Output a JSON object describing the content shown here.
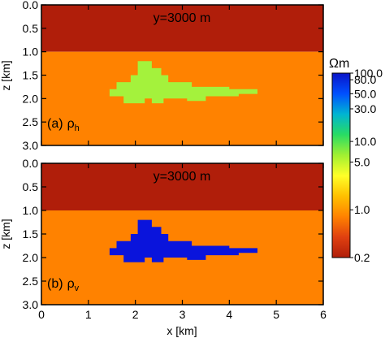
{
  "chart_data": [
    {
      "type": "heatmap",
      "annotation": "y=3000 m",
      "panel_label": "(a)",
      "symbol": "ρ",
      "subscript": "h",
      "xlim": [
        0,
        6
      ],
      "ylim": [
        3.0,
        0.0
      ],
      "ylabel": "z [km]",
      "yticks": [
        "0.0",
        "0.5",
        "1.0",
        "1.5",
        "2.0",
        "2.5",
        "3.0"
      ],
      "regions": [
        {
          "name": "upper layer",
          "z_range": [
            0.0,
            1.0
          ],
          "x_range": [
            0,
            6
          ],
          "resistivity": 0.2,
          "color": "#b01e0a"
        },
        {
          "name": "background",
          "z_range": [
            1.0,
            3.0
          ],
          "x_range": [
            0,
            6
          ],
          "resistivity": 3.0,
          "color": "#ff8200"
        },
        {
          "name": "anomaly",
          "resistivity": 10.0,
          "color": "#a4f23c",
          "polygon": [
            [
              2.05,
              1.2
            ],
            [
              2.35,
              1.2
            ],
            [
              2.35,
              1.35
            ],
            [
              2.55,
              1.35
            ],
            [
              2.55,
              1.5
            ],
            [
              2.7,
              1.5
            ],
            [
              2.7,
              1.65
            ],
            [
              3.2,
              1.65
            ],
            [
              3.2,
              1.75
            ],
            [
              4.0,
              1.75
            ],
            [
              4.0,
              1.8
            ],
            [
              4.6,
              1.8
            ],
            [
              4.6,
              1.9
            ],
            [
              4.2,
              1.9
            ],
            [
              4.2,
              1.95
            ],
            [
              3.5,
              1.95
            ],
            [
              3.5,
              2.05
            ],
            [
              3.1,
              2.05
            ],
            [
              3.1,
              2.0
            ],
            [
              2.6,
              2.0
            ],
            [
              2.6,
              2.1
            ],
            [
              2.35,
              2.1
            ],
            [
              2.35,
              2.0
            ],
            [
              2.2,
              2.0
            ],
            [
              2.2,
              2.1
            ],
            [
              1.75,
              2.1
            ],
            [
              1.75,
              1.95
            ],
            [
              1.45,
              1.95
            ],
            [
              1.45,
              1.8
            ],
            [
              1.6,
              1.8
            ],
            [
              1.6,
              1.65
            ],
            [
              1.9,
              1.65
            ],
            [
              1.9,
              1.5
            ],
            [
              2.05,
              1.5
            ]
          ]
        }
      ]
    },
    {
      "type": "heatmap",
      "annotation": "y=3000 m",
      "panel_label": "(b)",
      "symbol": "ρ",
      "subscript": "v",
      "xlim": [
        0,
        6
      ],
      "ylim": [
        3.0,
        0.0
      ],
      "xlabel": "x [km]",
      "ylabel": "z [km]",
      "xticks": [
        "0",
        "1",
        "2",
        "3",
        "4",
        "5",
        "6"
      ],
      "yticks": [
        "0.0",
        "0.5",
        "1.0",
        "1.5",
        "2.0",
        "2.5",
        "3.0"
      ],
      "regions": [
        {
          "name": "upper layer",
          "z_range": [
            0.0,
            1.0
          ],
          "x_range": [
            0,
            6
          ],
          "resistivity": 0.2,
          "color": "#b01e0a"
        },
        {
          "name": "background",
          "z_range": [
            1.0,
            3.0
          ],
          "x_range": [
            0,
            6
          ],
          "resistivity": 3.0,
          "color": "#ff8200"
        },
        {
          "name": "anomaly",
          "resistivity": 100.0,
          "color": "#0a14dc",
          "polygon": [
            [
              2.05,
              1.2
            ],
            [
              2.35,
              1.2
            ],
            [
              2.35,
              1.35
            ],
            [
              2.55,
              1.35
            ],
            [
              2.55,
              1.5
            ],
            [
              2.7,
              1.5
            ],
            [
              2.7,
              1.65
            ],
            [
              3.2,
              1.65
            ],
            [
              3.2,
              1.75
            ],
            [
              4.0,
              1.75
            ],
            [
              4.0,
              1.8
            ],
            [
              4.6,
              1.8
            ],
            [
              4.6,
              1.9
            ],
            [
              4.2,
              1.9
            ],
            [
              4.2,
              1.95
            ],
            [
              3.5,
              1.95
            ],
            [
              3.5,
              2.05
            ],
            [
              3.1,
              2.05
            ],
            [
              3.1,
              2.0
            ],
            [
              2.6,
              2.0
            ],
            [
              2.6,
              2.1
            ],
            [
              2.35,
              2.1
            ],
            [
              2.35,
              2.0
            ],
            [
              2.2,
              2.0
            ],
            [
              2.2,
              2.1
            ],
            [
              1.75,
              2.1
            ],
            [
              1.75,
              1.95
            ],
            [
              1.45,
              1.95
            ],
            [
              1.45,
              1.8
            ],
            [
              1.6,
              1.8
            ],
            [
              1.6,
              1.65
            ],
            [
              1.9,
              1.65
            ],
            [
              1.9,
              1.5
            ],
            [
              2.05,
              1.5
            ]
          ]
        }
      ]
    }
  ],
  "colorbar": {
    "unit": "Ωm",
    "scale": "log",
    "range": [
      0.2,
      100.0
    ],
    "ticks": [
      "100.0",
      "80.0",
      "50.0",
      "30.0",
      "10.0",
      "5.0",
      "1.0",
      "0.2"
    ],
    "colors": [
      "#b01e0a",
      "#e04010",
      "#ff8200",
      "#ffc000",
      "#ffff28",
      "#a0f032",
      "#28dc64",
      "#00b4d2",
      "#0050ff",
      "#0a14c8"
    ]
  }
}
